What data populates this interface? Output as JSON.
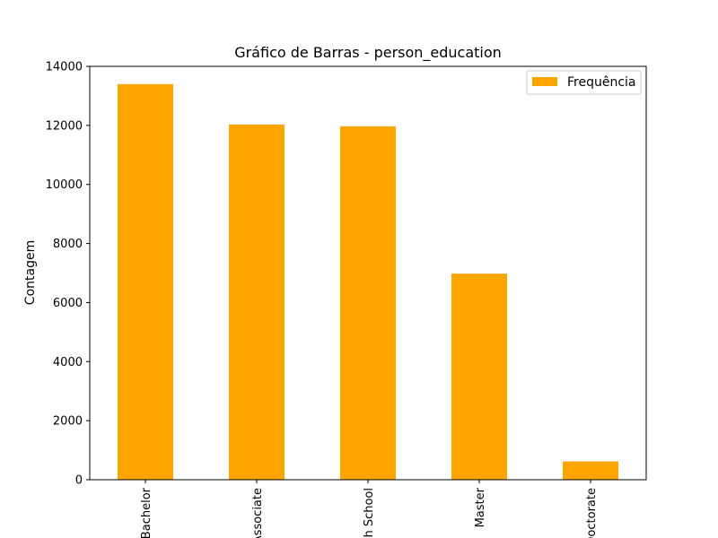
{
  "chart_data": {
    "type": "bar",
    "title": "Gráfico de Barras - person_education",
    "ylabel": "Contagem",
    "xlabel": "",
    "categories": [
      "Bachelor",
      "Associate",
      "High School",
      "Master",
      "Doctorate"
    ],
    "series": [
      {
        "name": "Frequência",
        "values": [
          13400,
          12030,
          11970,
          6980,
          620
        ]
      }
    ],
    "ylim": [
      0,
      14000
    ],
    "yticks": [
      0,
      2000,
      4000,
      6000,
      8000,
      10000,
      12000,
      14000
    ],
    "legend_position": "top-right",
    "grid": false,
    "colors": {
      "bar": "#ffa500"
    }
  }
}
